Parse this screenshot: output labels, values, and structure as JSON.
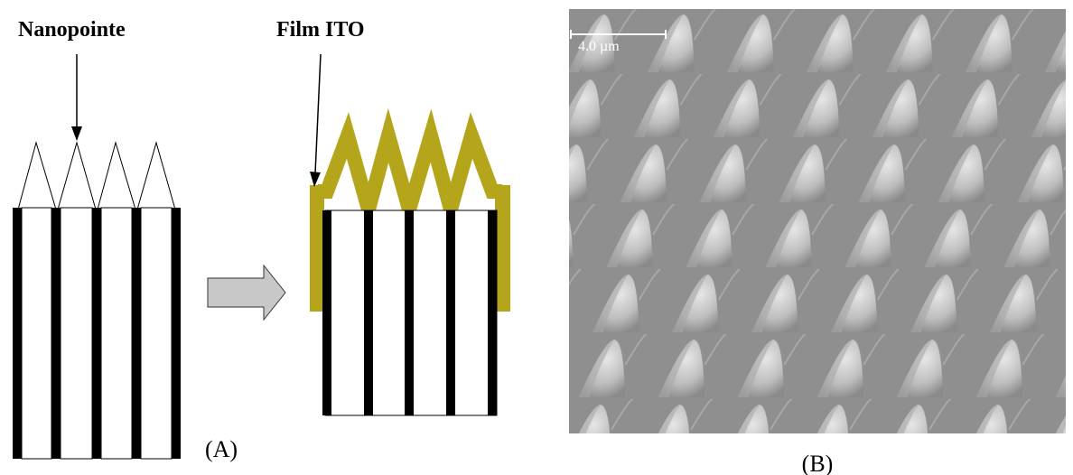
{
  "labels": {
    "nanotip": "Nanopointe",
    "ito_film": "Film ITO",
    "panel_a": "(A)",
    "panel_b": "(B)",
    "scale_bar": "4.0 µm"
  }
}
